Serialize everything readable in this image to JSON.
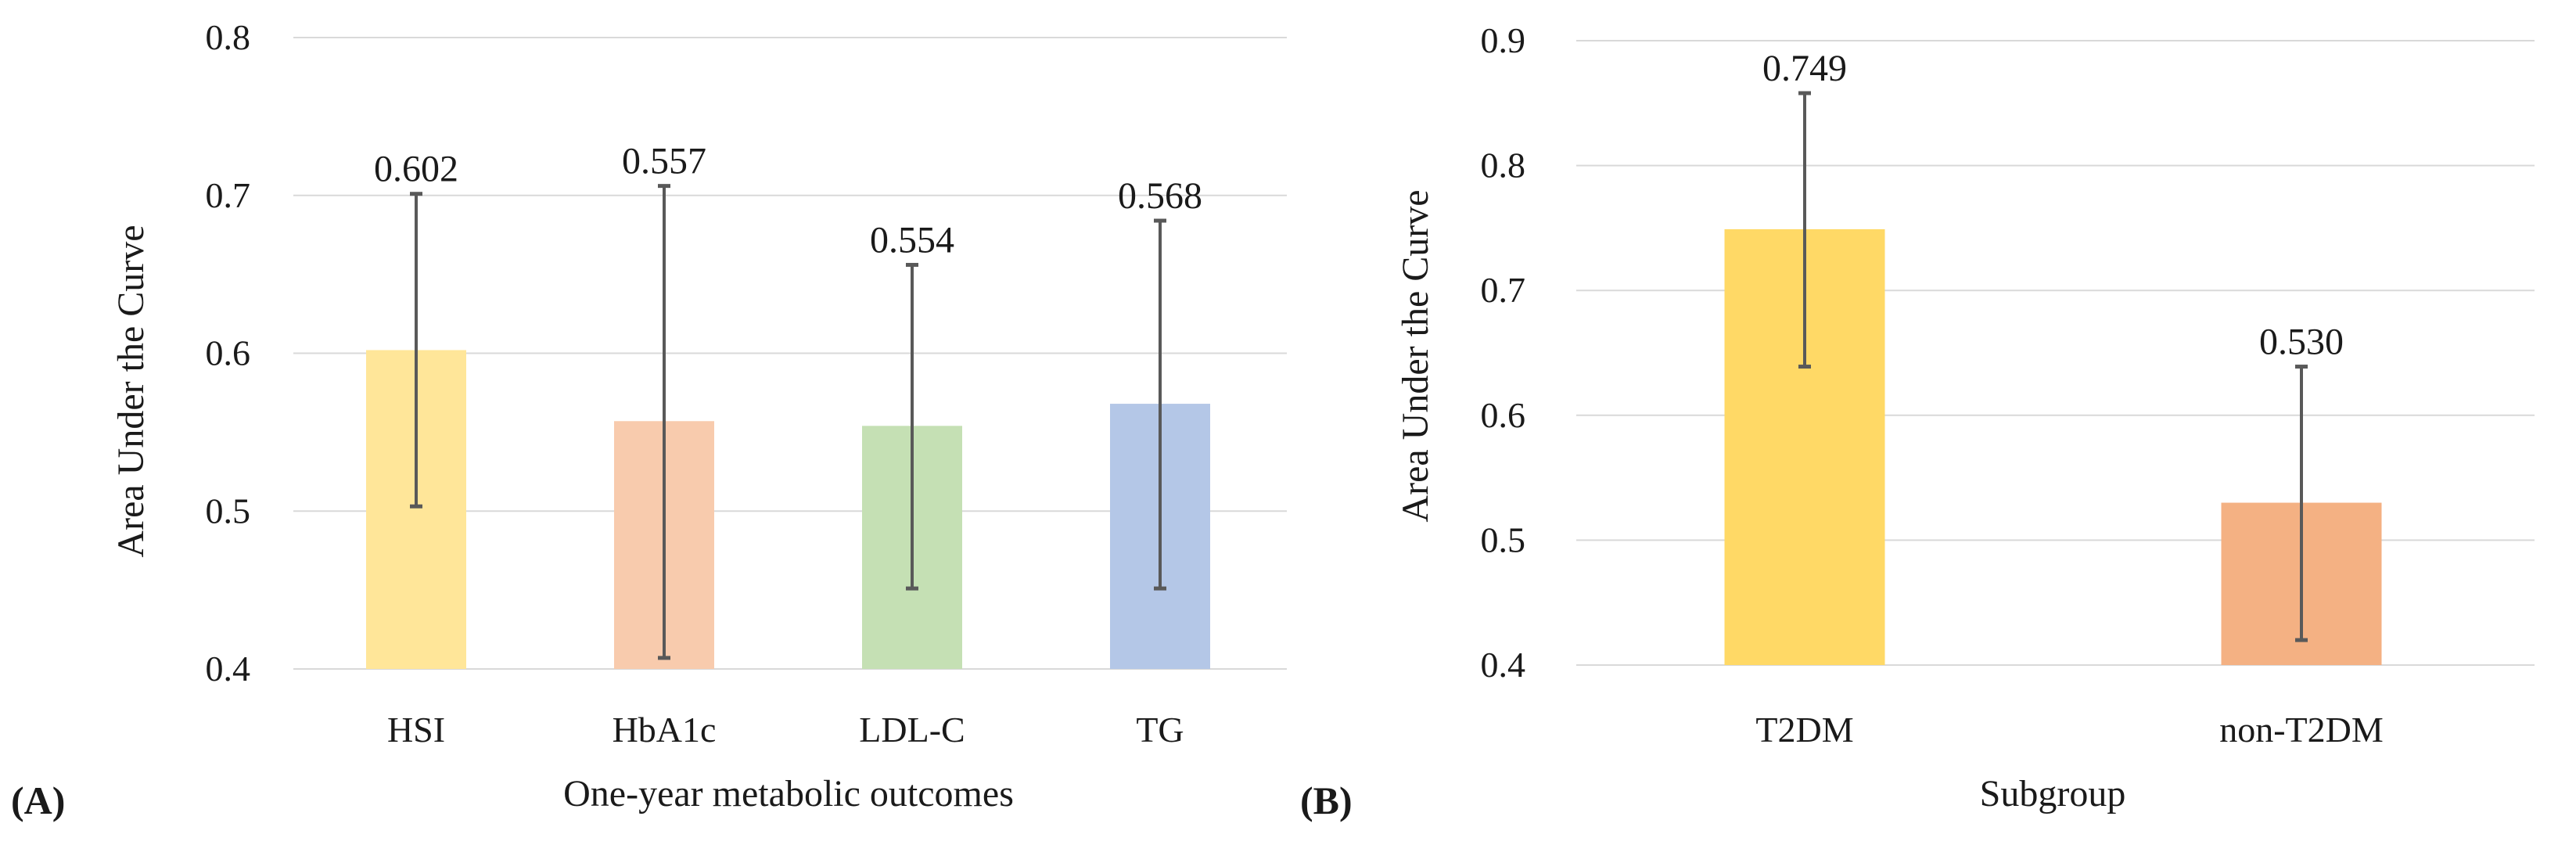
{
  "chart_data": [
    {
      "type": "bar",
      "panel_label": "(A)",
      "title": "",
      "xlabel": "One-year metabolic outcomes",
      "ylabel": "Area Under the Curve",
      "ylim": [
        0.4,
        0.8
      ],
      "yticks": [
        0.4,
        0.5,
        0.6,
        0.7,
        0.8
      ],
      "ytick_labels": [
        "0.4",
        "0.5",
        "0.6",
        "0.7",
        "0.8"
      ],
      "grid": true,
      "categories": [
        "HSI",
        "HbA1c",
        "LDL-C",
        "TG"
      ],
      "values": [
        0.602,
        0.557,
        0.554,
        0.568
      ],
      "value_labels": [
        "0.602",
        "0.557",
        "0.554",
        "0.568"
      ],
      "error_low": [
        0.503,
        0.407,
        0.451,
        0.451
      ],
      "error_high": [
        0.701,
        0.706,
        0.656,
        0.684
      ],
      "colors": [
        "#FFE699",
        "#F8CBAD",
        "#C5E0B4",
        "#B4C7E7"
      ]
    },
    {
      "type": "bar",
      "panel_label": "(B)",
      "title": "",
      "xlabel": "Subgroup",
      "ylabel": "Area Under the Curve",
      "ylim": [
        0.4,
        0.9
      ],
      "yticks": [
        0.4,
        0.5,
        0.6,
        0.7,
        0.8,
        0.9
      ],
      "ytick_labels": [
        "0.4",
        "0.5",
        "0.6",
        "0.7",
        "0.8",
        "0.9"
      ],
      "grid": true,
      "categories": [
        "T2DM",
        "non-T2DM"
      ],
      "values": [
        0.749,
        0.53
      ],
      "value_labels": [
        "0.749",
        "0.530"
      ],
      "error_low": [
        0.639,
        0.42
      ],
      "error_high": [
        0.858,
        0.639
      ],
      "colors": [
        "#FFD966",
        "#F4B183"
      ]
    }
  ]
}
